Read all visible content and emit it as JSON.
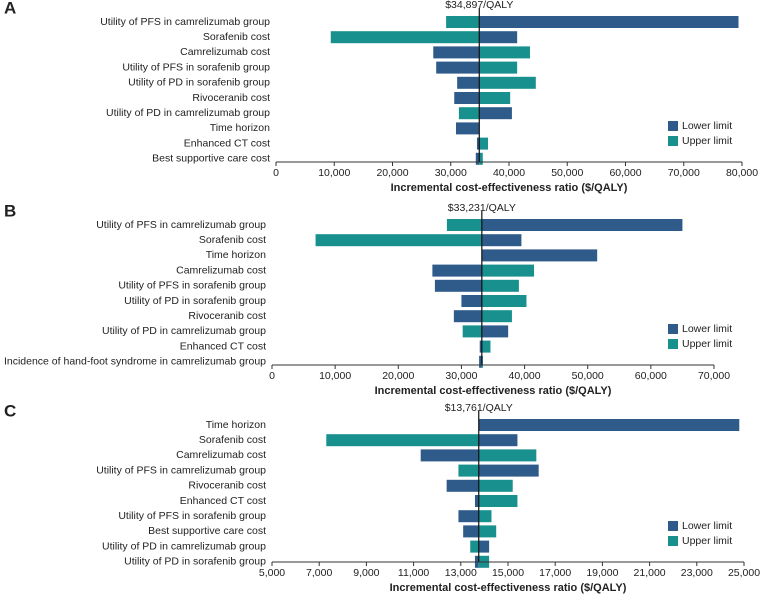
{
  "chart_data": [
    {
      "type": "tornado",
      "panel": "A",
      "base_value": 34897,
      "base_label": "$34,897/QALY",
      "x_label": "Incremental cost-effectiveness ratio ($/QALY)",
      "categories": [
        "Utility of PFS in camrelizumab group",
        "Sorafenib cost",
        "Camrelizumab cost",
        "Utility of PFS in sorafenib group",
        "Utility of PD in sorafenib group",
        "Rivoceranib cost",
        "Utility of PD in camrelizumab group",
        "Time horizon",
        "Enhanced CT cost",
        "Best supportive care cost"
      ],
      "series": [
        {
          "name": "Lower limit",
          "color": "#2f5b8b",
          "values": [
            79400,
            41400,
            27000,
            27500,
            31100,
            30600,
            40500,
            30900,
            34500,
            34300
          ]
        },
        {
          "name": "Upper limit",
          "color": "#17908e",
          "values": [
            29200,
            9400,
            43600,
            41400,
            44600,
            40200,
            31400,
            34897,
            36400,
            35500
          ]
        }
      ],
      "xlim": [
        0,
        80000
      ],
      "xticks": [
        0,
        {
          "value": 10000,
          "label": "10,000"
        },
        {
          "value": 20000,
          "label": "20,000"
        },
        {
          "value": 30000,
          "label": "30,000"
        },
        {
          "value": 40000,
          "label": "40,000"
        },
        {
          "value": 50000,
          "label": "50,000"
        },
        {
          "value": 60000,
          "label": "60,000"
        },
        {
          "value": 70000,
          "label": "70,000"
        },
        {
          "value": 80000,
          "label": "80,000"
        }
      ],
      "legend": "lower-right"
    },
    {
      "type": "tornado",
      "panel": "B",
      "base_value": 33231,
      "base_label": "$33,231/QALY",
      "x_label": "Incremental cost-effectiveness ratio  ($/QALY)",
      "categories": [
        "Utility of PFS in camrelizumab group",
        "Sorafenib cost",
        "Time horizon",
        "Camrelizumab cost",
        "Utility of PFS in sorafenib group",
        "Utility of PD in sorafenib group",
        "Rivoceranib cost",
        "Utility of PD in camrelizumab group",
        "Enhanced CT cost",
        "Incidence of hand-foot syndrome in camrelizumab group"
      ],
      "series": [
        {
          "name": "Lower limit",
          "color": "#2f5b8b",
          "values": [
            65000,
            39500,
            51500,
            25400,
            25800,
            30000,
            28800,
            37400,
            32900,
            32800
          ]
        },
        {
          "name": "Upper limit",
          "color": "#17908e",
          "values": [
            27700,
            6900,
            33231,
            41500,
            39100,
            40300,
            38000,
            30200,
            34600,
            33400
          ]
        }
      ],
      "xlim": [
        0,
        70000
      ],
      "xticks": [
        0,
        {
          "value": 10000,
          "label": "10,000"
        },
        {
          "value": 20000,
          "label": "20,000"
        },
        {
          "value": 30000,
          "label": "30,000"
        },
        {
          "value": 40000,
          "label": "40,000"
        },
        {
          "value": 50000,
          "label": "50,000"
        },
        {
          "value": 60000,
          "label": "60,000"
        },
        {
          "value": 70000,
          "label": "70,000"
        }
      ],
      "legend": "lower-right"
    },
    {
      "type": "tornado",
      "panel": "C",
      "base_value": 13761,
      "base_label": "$13,761/QALY",
      "x_label": "Incremental cost-effectiveness ratio  ($/QALY)",
      "categories": [
        "Time horizon",
        "Sorafenib cost",
        "Camrelizumab cost",
        "Utility of PFS in camrelizumab group",
        "Rivoceranib cost",
        "Enhanced CT cost",
        "Utility of PFS in sorafenib group",
        "Best supportive care cost",
        "Utility of PD in camrelizumab group",
        "Utility of PD in sorafenib group"
      ],
      "series": [
        {
          "name": "Lower limit",
          "color": "#2f5b8b",
          "values": [
            24800,
            15400,
            11300,
            16300,
            12400,
            13600,
            12900,
            13100,
            14200,
            13600
          ]
        },
        {
          "name": "Upper limit",
          "color": "#17908e",
          "values": [
            13761,
            7300,
            16200,
            12900,
            15200,
            15400,
            14300,
            14500,
            13400,
            14200
          ]
        }
      ],
      "xlim": [
        5000,
        25000
      ],
      "xticks": [
        {
          "value": 5000,
          "label": "5,000"
        },
        {
          "value": 7000,
          "label": "7,000"
        },
        {
          "value": 9000,
          "label": "9,000"
        },
        {
          "value": 11000,
          "label": "11,000"
        },
        {
          "value": 13000,
          "label": "13,000"
        },
        {
          "value": 15000,
          "label": "15,000"
        },
        {
          "value": 17000,
          "label": "17,000"
        },
        {
          "value": 19000,
          "label": "19,000"
        },
        {
          "value": 21000,
          "label": "21,000"
        },
        {
          "value": 23000,
          "label": "23,000"
        },
        {
          "value": 25000,
          "label": "25,000"
        }
      ],
      "legend": "lower-right"
    }
  ]
}
